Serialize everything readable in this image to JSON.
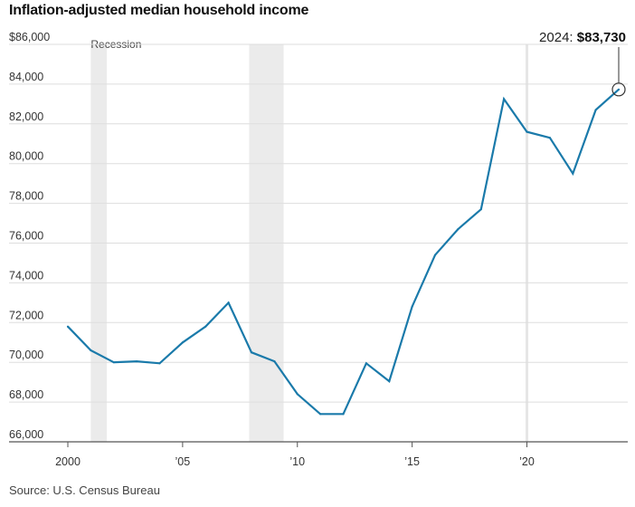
{
  "title": "Inflation-adjusted median household income",
  "source": "Source: U.S. Census Bureau",
  "chart_data": {
    "type": "line",
    "title": "Inflation-adjusted median household income",
    "xlabel": "",
    "ylabel": "",
    "xlim": [
      2000,
      2024
    ],
    "ylim": [
      66000,
      86000
    ],
    "y_ticks": [
      66000,
      68000,
      70000,
      72000,
      74000,
      76000,
      78000,
      80000,
      82000,
      84000,
      86000
    ],
    "y_tick_labels": [
      "66,000",
      "68,000",
      "70,000",
      "72,000",
      "74,000",
      "76,000",
      "78,000",
      "80,000",
      "82,000",
      "84,000",
      "$86,000"
    ],
    "x_ticks": [
      2000,
      2005,
      2010,
      2015,
      2020
    ],
    "x_tick_labels": [
      "2000",
      "’05",
      "’10",
      "’15",
      "’20"
    ],
    "grid": "horizontal",
    "line_color": "#1a7aaa",
    "recessions": [
      {
        "start": 2001.0,
        "end": 2001.7
      },
      {
        "start": 2007.9,
        "end": 2009.4
      }
    ],
    "recession_label": "Recession",
    "highlight_year": 2020,
    "series": [
      {
        "x": [
          2000,
          2001,
          2002,
          2003,
          2004,
          2005,
          2006,
          2007,
          2008,
          2009,
          2010,
          2011,
          2012,
          2013,
          2014,
          2015,
          2016,
          2017,
          2018,
          2019,
          2020,
          2021,
          2022,
          2023,
          2024
        ],
        "values": [
          71800,
          70600,
          70000,
          70050,
          69950,
          71000,
          71800,
          73000,
          70500,
          70050,
          68400,
          67400,
          67400,
          69950,
          69050,
          72800,
          75400,
          76700,
          77700,
          83250,
          81600,
          81300,
          79500,
          82700,
          83730
        ]
      }
    ],
    "callout": {
      "year_label": "2024:",
      "value_label": "$83,730"
    }
  }
}
